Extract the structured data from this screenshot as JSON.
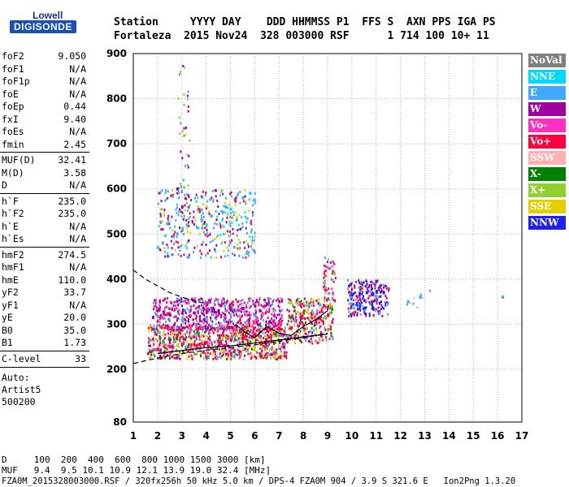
{
  "logo": {
    "top": "Lowell",
    "bottom": "DIGISONDE"
  },
  "header": {
    "line1": "Station     YYYY DAY    DDD HHMMSS P1  FFS S  AXN PPS IGA PS",
    "line2": "Fortaleza  2015 Nov24  328 003000 RSF      1 714 100 10+ 11"
  },
  "params": {
    "group1": [
      {
        "name": "foF2",
        "value": "9.050"
      },
      {
        "name": "foF1",
        "value": "N/A"
      },
      {
        "name": "foF1p",
        "value": "N/A"
      },
      {
        "name": "foE",
        "value": "N/A"
      },
      {
        "name": "foEp",
        "value": "0.44"
      },
      {
        "name": "fxI",
        "value": "9.40"
      },
      {
        "name": "foEs",
        "value": "N/A"
      },
      {
        "name": "fmin",
        "value": "2.45"
      }
    ],
    "group2": [
      {
        "name": "MUF(D)",
        "value": "32.41"
      },
      {
        "name": "M(D)",
        "value": "3.58"
      },
      {
        "name": "D",
        "value": "N/A"
      }
    ],
    "group3": [
      {
        "name": "h`F",
        "value": "235.0"
      },
      {
        "name": "h`F2",
        "value": "235.0"
      },
      {
        "name": "h`E",
        "value": "N/A"
      },
      {
        "name": "h`Es",
        "value": "N/A"
      }
    ],
    "group4": [
      {
        "name": "hmF2",
        "value": "274.5"
      },
      {
        "name": "hmF1",
        "value": "N/A"
      },
      {
        "name": "hmE",
        "value": "110.0"
      },
      {
        "name": "yF2",
        "value": "33.7"
      },
      {
        "name": "yF1",
        "value": "N/A"
      },
      {
        "name": "yE",
        "value": "20.0"
      },
      {
        "name": "B0",
        "value": "35.0"
      },
      {
        "name": "B1",
        "value": "1.73"
      }
    ],
    "clevel": {
      "name": "C-level",
      "value": "33"
    },
    "auto": [
      "Auto:",
      "Artist5",
      "500200"
    ]
  },
  "footer": {
    "d_row": "D     100  200  400  600  800 1000 1500 3000 [km]",
    "muf_row": "MUF   9.4  9.5 10.1 10.9 12.1 13.9 19.0 32.4 [MHz]",
    "file_row": "FZA0M_2015328003000.RSF / 320fx256h 50 kHz 5.0 km / DPS-4 FZA0M 904 / 3.9 S 321.6 E   Ion2Png 1.3.20"
  },
  "legend": [
    {
      "label": "NoVal",
      "color": "#808080"
    },
    {
      "label": "NNE",
      "color": "#00d8ff"
    },
    {
      "label": "E",
      "color": "#40a8ff"
    },
    {
      "label": "W",
      "color": "#a000a0"
    },
    {
      "label": "Vo-",
      "color": "#ff30c0"
    },
    {
      "label": "Vo+",
      "color": "#ff0040"
    },
    {
      "label": "SSW",
      "color": "#ffb0b0"
    },
    {
      "label": "X-",
      "color": "#008000"
    },
    {
      "label": "X+",
      "color": "#90d030"
    },
    {
      "label": "SSE",
      "color": "#e0d000"
    },
    {
      "label": "NNW",
      "color": "#2020f0"
    }
  ],
  "chart_data": {
    "type": "scatter",
    "title": "",
    "xlabel": "",
    "ylabel": "",
    "xlim": [
      1,
      17
    ],
    "ylim": [
      80,
      900
    ],
    "x_ticks": [
      1,
      2,
      3,
      4,
      5,
      6,
      7,
      8,
      9,
      10,
      11,
      12,
      13,
      14,
      15,
      16,
      17
    ],
    "y_ticks": [
      80,
      200,
      300,
      400,
      500,
      600,
      700,
      800,
      900
    ],
    "grid": true,
    "series": [
      {
        "name": "Vo+",
        "color": "#ff0040",
        "points": [
          [
            1.6,
            235
          ],
          [
            2.0,
            245
          ],
          [
            2.5,
            250
          ],
          [
            3.0,
            255
          ],
          [
            3.5,
            255
          ],
          [
            4.0,
            258
          ],
          [
            4.5,
            262
          ],
          [
            5.0,
            265
          ],
          [
            5.5,
            270
          ],
          [
            6.0,
            278
          ],
          [
            6.5,
            285
          ],
          [
            7.0,
            290
          ],
          [
            7.5,
            292
          ],
          [
            8.0,
            298
          ],
          [
            8.5,
            305
          ],
          [
            9.0,
            320
          ]
        ]
      },
      {
        "name": "W",
        "color": "#a000a0",
        "points": [
          [
            1.8,
            315
          ],
          [
            2.5,
            320
          ],
          [
            3.0,
            325
          ],
          [
            3.5,
            325
          ],
          [
            4.0,
            328
          ],
          [
            4.5,
            330
          ],
          [
            5.0,
            332
          ],
          [
            5.5,
            335
          ],
          [
            6.0,
            340
          ],
          [
            6.5,
            345
          ],
          [
            7.0,
            350
          ],
          [
            2.8,
            600
          ],
          [
            3.0,
            560
          ],
          [
            6.2,
            330
          ]
        ]
      },
      {
        "name": "E",
        "color": "#40a8ff",
        "points": [
          [
            2.2,
            480
          ],
          [
            2.8,
            500
          ],
          [
            3.2,
            520
          ],
          [
            3.8,
            530
          ],
          [
            4.2,
            540
          ],
          [
            4.8,
            560
          ],
          [
            5.5,
            580
          ],
          [
            3.0,
            310
          ],
          [
            4.0,
            312
          ],
          [
            5.0,
            320
          ],
          [
            6.0,
            318
          ],
          [
            12.3,
            350
          ],
          [
            12.8,
            360
          ],
          [
            16.2,
            360
          ]
        ]
      },
      {
        "name": "NNW",
        "color": "#2020f0",
        "points": [
          [
            10.0,
            365
          ],
          [
            10.3,
            368
          ],
          [
            10.6,
            370
          ],
          [
            11.0,
            372
          ],
          [
            11.3,
            370
          ]
        ]
      },
      {
        "name": "NNE",
        "color": "#00d8ff",
        "points": [
          [
            2.0,
            470
          ],
          [
            3.0,
            510
          ],
          [
            4.0,
            520
          ],
          [
            5.0,
            555
          ],
          [
            5.8,
            590
          ]
        ]
      }
    ],
    "curves": [
      {
        "name": "dashed-profile",
        "style": "dashed",
        "points": [
          [
            1,
            420
          ],
          [
            1.5,
            400
          ],
          [
            2,
            385
          ],
          [
            2.5,
            370
          ],
          [
            3,
            360
          ],
          [
            3.5,
            352
          ],
          [
            4,
            345
          ]
        ]
      },
      {
        "name": "dashed-lower",
        "style": "dashed",
        "points": [
          [
            1,
            213
          ],
          [
            2,
            225
          ],
          [
            3,
            235
          ],
          [
            4,
            242
          ],
          [
            5,
            248
          ],
          [
            6,
            254
          ],
          [
            7,
            262
          ],
          [
            8,
            270
          ],
          [
            9,
            280
          ]
        ]
      },
      {
        "name": "solid-trace",
        "style": "solid",
        "points": [
          [
            2,
            235
          ],
          [
            3,
            242
          ],
          [
            4,
            248
          ],
          [
            5,
            252
          ],
          [
            6,
            258
          ],
          [
            7,
            265
          ],
          [
            8,
            272
          ],
          [
            9,
            278
          ]
        ]
      },
      {
        "name": "dark-trace",
        "style": "solid",
        "points": [
          [
            5.2,
            300
          ],
          [
            5.6,
            282
          ],
          [
            6.0,
            270
          ],
          [
            6.5,
            295
          ],
          [
            7.0,
            280
          ],
          [
            7.5,
            275
          ],
          [
            8.0,
            295
          ],
          [
            8.5,
            310
          ],
          [
            9.0,
            330
          ]
        ]
      }
    ]
  }
}
